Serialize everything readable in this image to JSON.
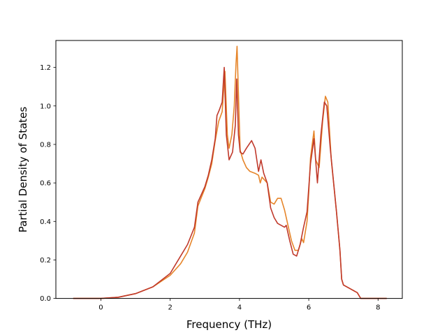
{
  "chart_data": {
    "type": "line",
    "title": "",
    "xlabel": "Frequency (THz)",
    "ylabel": "Partial Density of States",
    "xlim": [
      -1.3,
      8.7
    ],
    "ylim": [
      0.0,
      1.34
    ],
    "xticks": [
      0,
      2,
      4,
      6,
      8
    ],
    "yticks": [
      0.0,
      0.2,
      0.4,
      0.6,
      0.8,
      1.0,
      1.2
    ],
    "xtick_labels": [
      "0",
      "2",
      "4",
      "6",
      "8"
    ],
    "ytick_labels": [
      "0.0",
      "0.2",
      "0.4",
      "0.6",
      "0.8",
      "1.0",
      "1.2"
    ],
    "grid": false,
    "legend": false,
    "series": [
      {
        "color": "#e6852a",
        "points": [
          [
            -0.8,
            0.0
          ],
          [
            0.0,
            0.0
          ],
          [
            0.5,
            0.006
          ],
          [
            1.0,
            0.025
          ],
          [
            1.5,
            0.06
          ],
          [
            2.0,
            0.12
          ],
          [
            2.3,
            0.18
          ],
          [
            2.5,
            0.24
          ],
          [
            2.7,
            0.34
          ],
          [
            2.8,
            0.48
          ],
          [
            3.0,
            0.57
          ],
          [
            3.1,
            0.63
          ],
          [
            3.2,
            0.7
          ],
          [
            3.3,
            0.82
          ],
          [
            3.4,
            0.92
          ],
          [
            3.5,
            0.97
          ],
          [
            3.58,
            1.18
          ],
          [
            3.65,
            0.85
          ],
          [
            3.7,
            0.78
          ],
          [
            3.78,
            0.85
          ],
          [
            3.85,
            1.0
          ],
          [
            3.9,
            1.22
          ],
          [
            3.93,
            1.31
          ],
          [
            3.98,
            1.0
          ],
          [
            4.02,
            0.77
          ],
          [
            4.1,
            0.72
          ],
          [
            4.2,
            0.68
          ],
          [
            4.3,
            0.66
          ],
          [
            4.45,
            0.65
          ],
          [
            4.55,
            0.64
          ],
          [
            4.6,
            0.6
          ],
          [
            4.65,
            0.63
          ],
          [
            4.8,
            0.6
          ],
          [
            4.9,
            0.5
          ],
          [
            5.0,
            0.49
          ],
          [
            5.1,
            0.52
          ],
          [
            5.2,
            0.52
          ],
          [
            5.3,
            0.46
          ],
          [
            5.4,
            0.38
          ],
          [
            5.5,
            0.3
          ],
          [
            5.6,
            0.25
          ],
          [
            5.7,
            0.25
          ],
          [
            5.8,
            0.31
          ],
          [
            5.85,
            0.29
          ],
          [
            5.95,
            0.4
          ],
          [
            6.0,
            0.55
          ],
          [
            6.05,
            0.73
          ],
          [
            6.15,
            0.87
          ],
          [
            6.2,
            0.72
          ],
          [
            6.3,
            0.68
          ],
          [
            6.4,
            0.92
          ],
          [
            6.48,
            1.05
          ],
          [
            6.55,
            1.02
          ],
          [
            6.65,
            0.72
          ],
          [
            6.8,
            0.45
          ],
          [
            6.9,
            0.25
          ],
          [
            6.95,
            0.1
          ],
          [
            7.0,
            0.07
          ],
          [
            7.2,
            0.05
          ],
          [
            7.4,
            0.03
          ],
          [
            7.5,
            0.0
          ],
          [
            8.25,
            0.0
          ]
        ]
      },
      {
        "color": "#c0392b",
        "points": [
          [
            -0.8,
            0.0
          ],
          [
            0.0,
            0.0
          ],
          [
            0.5,
            0.006
          ],
          [
            1.0,
            0.025
          ],
          [
            1.5,
            0.06
          ],
          [
            2.0,
            0.13
          ],
          [
            2.3,
            0.22
          ],
          [
            2.5,
            0.28
          ],
          [
            2.7,
            0.37
          ],
          [
            2.8,
            0.5
          ],
          [
            3.0,
            0.58
          ],
          [
            3.1,
            0.64
          ],
          [
            3.2,
            0.72
          ],
          [
            3.3,
            0.83
          ],
          [
            3.35,
            0.95
          ],
          [
            3.42,
            0.98
          ],
          [
            3.5,
            1.02
          ],
          [
            3.56,
            1.2
          ],
          [
            3.62,
            0.85
          ],
          [
            3.7,
            0.72
          ],
          [
            3.8,
            0.76
          ],
          [
            3.88,
            0.9
          ],
          [
            3.92,
            1.14
          ],
          [
            3.97,
            0.85
          ],
          [
            4.02,
            0.76
          ],
          [
            4.1,
            0.75
          ],
          [
            4.2,
            0.78
          ],
          [
            4.35,
            0.82
          ],
          [
            4.45,
            0.78
          ],
          [
            4.55,
            0.66
          ],
          [
            4.62,
            0.72
          ],
          [
            4.7,
            0.65
          ],
          [
            4.8,
            0.6
          ],
          [
            4.9,
            0.47
          ],
          [
            5.0,
            0.42
          ],
          [
            5.1,
            0.39
          ],
          [
            5.2,
            0.38
          ],
          [
            5.3,
            0.37
          ],
          [
            5.35,
            0.38
          ],
          [
            5.45,
            0.3
          ],
          [
            5.55,
            0.23
          ],
          [
            5.65,
            0.22
          ],
          [
            5.75,
            0.28
          ],
          [
            5.85,
            0.37
          ],
          [
            5.95,
            0.45
          ],
          [
            6.05,
            0.7
          ],
          [
            6.15,
            0.83
          ],
          [
            6.25,
            0.6
          ],
          [
            6.35,
            0.85
          ],
          [
            6.45,
            1.02
          ],
          [
            6.52,
            1.0
          ],
          [
            6.62,
            0.78
          ],
          [
            6.8,
            0.45
          ],
          [
            6.9,
            0.25
          ],
          [
            6.95,
            0.1
          ],
          [
            7.0,
            0.07
          ],
          [
            7.2,
            0.05
          ],
          [
            7.4,
            0.03
          ],
          [
            7.5,
            0.0
          ],
          [
            8.25,
            0.0
          ]
        ]
      }
    ]
  }
}
